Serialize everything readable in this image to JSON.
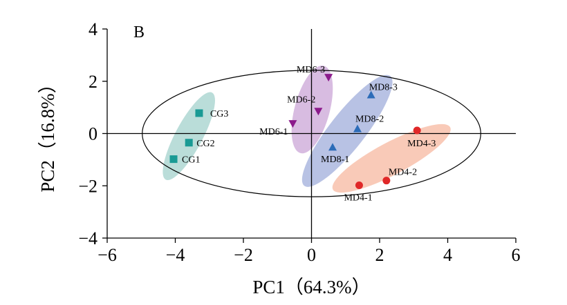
{
  "chart_data": {
    "type": "scatter",
    "panel_label": "B",
    "xlabel": "PC1（64.3%）",
    "ylabel": "PC2（16.8%）",
    "xlim": [
      -6,
      6
    ],
    "ylim": [
      -4,
      4
    ],
    "x_ticks": [
      -6,
      -4,
      -2,
      0,
      2,
      4,
      6
    ],
    "y_ticks": [
      -4,
      -2,
      0,
      2,
      4
    ],
    "x_tick_labels": [
      "−6",
      "−4",
      "−2",
      "0",
      "2",
      "4",
      "6"
    ],
    "y_tick_labels": [
      "−4",
      "−2",
      "0",
      "2",
      "4"
    ],
    "confidence_ellipse": {
      "cx": 0,
      "cy": 0,
      "rx": 4.97,
      "ry": 2.42,
      "angle": 0
    },
    "series": [
      {
        "group": "CG",
        "marker": "square",
        "color": "#199a94",
        "ellipse_color": "#9ccfc9",
        "ellipse": {
          "cx": -3.6,
          "cy": -0.1,
          "rx": 1.45,
          "ry": 0.52,
          "angle": -62
        },
        "points": [
          {
            "label": "CG3",
            "x": -3.3,
            "y": 0.78
          },
          {
            "label": "CG2",
            "x": -3.6,
            "y": -0.35
          },
          {
            "label": "CG1",
            "x": -4.05,
            "y": -0.98
          }
        ]
      },
      {
        "group": "MD6",
        "marker": "triangle-down",
        "color": "#8b1a8b",
        "ellipse_color": "#c7a0d4",
        "ellipse": {
          "cx": 0.02,
          "cy": 0.92,
          "rx": 1.33,
          "ry": 0.67,
          "angle": -75
        },
        "points": [
          {
            "label": "MD6-3",
            "x": 0.5,
            "y": 2.15
          },
          {
            "label": "MD6-2",
            "x": 0.2,
            "y": 0.85
          },
          {
            "label": "MD6-1",
            "x": -0.55,
            "y": 0.38
          }
        ]
      },
      {
        "group": "MD8",
        "marker": "triangle-up",
        "color": "#2c6cb8",
        "ellipse_color": "#9aa8d8",
        "ellipse": {
          "cx": 1.05,
          "cy": 0.1,
          "rx": 2.05,
          "ry": 0.68,
          "angle": -52
        },
        "points": [
          {
            "label": "MD8-3",
            "x": 1.75,
            "y": 1.48
          },
          {
            "label": "MD8-2",
            "x": 1.35,
            "y": 0.18
          },
          {
            "label": "MD8-1",
            "x": 0.62,
            "y": -0.52
          }
        ]
      },
      {
        "group": "MD4",
        "marker": "circle",
        "color": "#e02828",
        "ellipse_color": "#f6b39a",
        "ellipse": {
          "cx": 2.35,
          "cy": -0.95,
          "rx": 1.95,
          "ry": 0.62,
          "angle": -28
        },
        "points": [
          {
            "label": "MD4-3",
            "x": 3.1,
            "y": 0.12
          },
          {
            "label": "MD4-2",
            "x": 2.2,
            "y": -1.8
          },
          {
            "label": "MD4-1",
            "x": 1.4,
            "y": -1.98
          }
        ]
      }
    ]
  }
}
